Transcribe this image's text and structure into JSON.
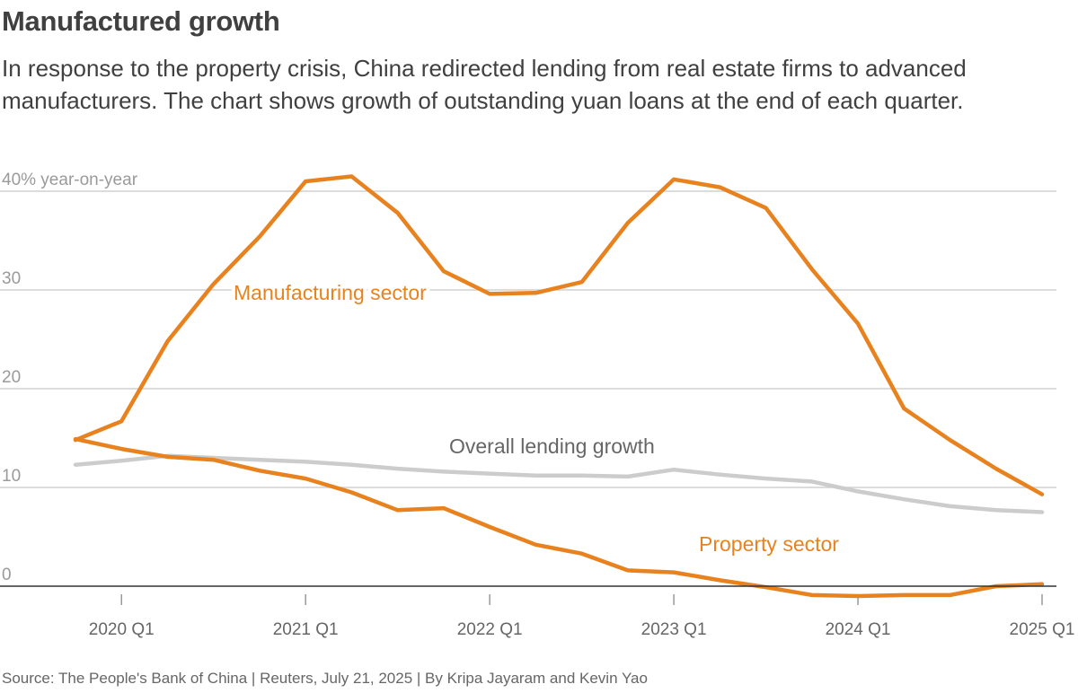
{
  "header": {
    "title": "Manufactured growth",
    "subtitle": "In response to the property crisis, China redirected lending from real estate firms to advanced manufacturers. The chart shows growth of outstanding yuan loans at the end of each quarter."
  },
  "footer": {
    "source": "Source: The People's Bank of China | Reuters, July 21, 2025 | By Kripa Jayaram and Kevin Yao"
  },
  "chart_data": {
    "type": "line",
    "ylim": [
      0,
      40
    ],
    "yticks": [
      {
        "value": 0,
        "label": "0"
      },
      {
        "value": 10,
        "label": "10"
      },
      {
        "value": 20,
        "label": "20"
      },
      {
        "value": 30,
        "label": "30"
      },
      {
        "value": 40,
        "label": "40% year-on-year"
      }
    ],
    "x_start": "2019 Q4",
    "xticks": [
      {
        "index": 1,
        "label": "2020 Q1"
      },
      {
        "index": 5,
        "label": "2021 Q1"
      },
      {
        "index": 9,
        "label": "2022 Q1"
      },
      {
        "index": 13,
        "label": "2023 Q1"
      },
      {
        "index": 17,
        "label": "2024 Q1"
      },
      {
        "index": 21,
        "label": "2025 Q1"
      }
    ],
    "colors": {
      "manufacturing": "#e8821f",
      "property": "#e8821f",
      "overall": "#cccccc",
      "grid": "#d0d0d0",
      "baseline": "#333333"
    },
    "series": [
      {
        "key": "overall",
        "name": "Overall lending growth",
        "values": [
          12.3,
          12.7,
          13.2,
          13.0,
          12.8,
          12.6,
          12.3,
          11.9,
          11.6,
          11.4,
          11.2,
          11.2,
          11.1,
          11.8,
          11.3,
          10.9,
          10.6,
          9.6,
          8.8,
          8.1,
          7.7,
          7.5
        ]
      },
      {
        "key": "manufacturing",
        "name": "Manufacturing sector",
        "values": [
          14.8,
          16.7,
          24.8,
          30.6,
          35.4,
          41.0,
          41.5,
          37.8,
          31.9,
          29.6,
          29.7,
          30.8,
          36.8,
          41.2,
          40.4,
          38.3,
          32.1,
          26.6,
          18.0,
          14.8,
          11.9,
          9.3
        ]
      },
      {
        "key": "property",
        "name": "Property sector",
        "values": [
          14.9,
          13.9,
          13.1,
          12.8,
          11.7,
          10.9,
          9.5,
          7.7,
          7.9,
          6.0,
          4.2,
          3.3,
          1.6,
          1.4,
          0.6,
          -0.1,
          -0.9,
          -1.0,
          -0.9,
          -0.9,
          0.0,
          0.2
        ]
      }
    ]
  }
}
